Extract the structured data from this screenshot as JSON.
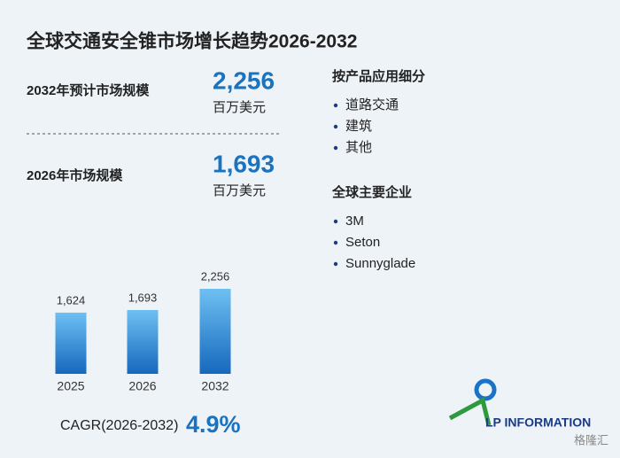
{
  "chart_data": {
    "type": "bar",
    "title": "全球交通安全锥市场增长趋势2026-2032",
    "categories": [
      "2025",
      "2026",
      "2032"
    ],
    "values": [
      1624,
      1693,
      2256
    ],
    "value_labels": [
      "1,624",
      "1,693",
      "2,256"
    ],
    "color": "#1a73c6"
  },
  "stats": [
    {
      "label": "2032年预计市场规模",
      "value": "2,256",
      "unit": "百万美元"
    },
    {
      "label": "2026年市场规模",
      "value": "1,693",
      "unit": "百万美元"
    }
  ],
  "cagr": {
    "label": "CAGR(2026-2032)",
    "value": "4.9%"
  },
  "segments": {
    "title": "按产品应用细分",
    "items": [
      "道路交通",
      "建筑",
      "其他"
    ]
  },
  "companies": {
    "title": "全球主要企业",
    "items": [
      "3M",
      "Seton",
      "Sunnyglade"
    ]
  },
  "logo": "LP INFORMATION",
  "watermark": "格隆汇"
}
